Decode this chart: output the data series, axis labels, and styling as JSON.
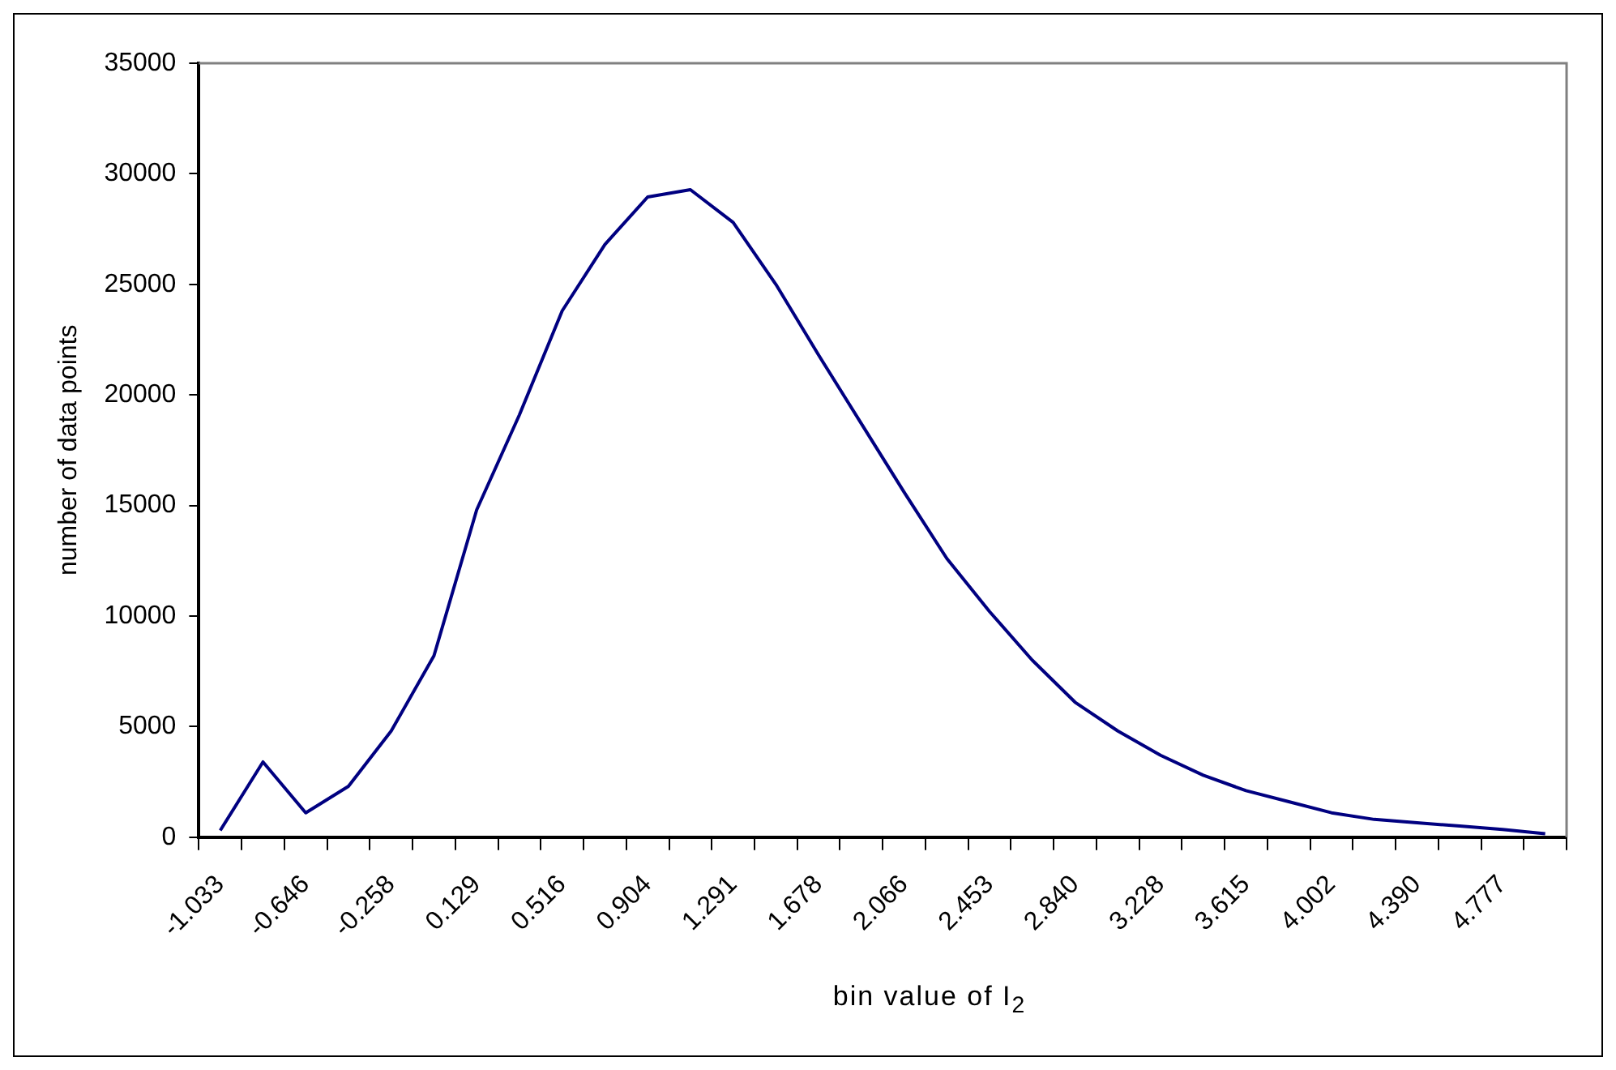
{
  "chart_data": {
    "type": "line",
    "xlabel": "bin value of I$_{2}$",
    "ylabel": "number of data points",
    "categories": [
      "-1.033",
      null,
      "-0.646",
      null,
      "-0.258",
      null,
      "0.129",
      null,
      "0.516",
      null,
      "0.904",
      null,
      "1.291",
      null,
      "1.678",
      null,
      "2.066",
      null,
      "2.453",
      null,
      "2.840",
      null,
      "3.228",
      null,
      "3.615",
      null,
      "4.002",
      null,
      "4.390",
      null,
      "4.777",
      null
    ],
    "series": [
      {
        "color": "#000080",
        "values": [
          300,
          3400,
          1100,
          2300,
          4800,
          8200,
          14800,
          19100,
          23800,
          26800,
          28950,
          29280,
          27800,
          25000,
          21800,
          18700,
          15600,
          12600,
          10200,
          8000,
          6100,
          4800,
          3700,
          2800,
          2100,
          1600,
          1100,
          800,
          650,
          500,
          350,
          150
        ]
      }
    ],
    "ylim": [
      0,
      35000
    ],
    "yticks": [
      0,
      5000,
      10000,
      15000,
      20000,
      25000,
      30000,
      35000
    ],
    "grid": false,
    "legend": false,
    "marker": "none",
    "line_style": "solid"
  }
}
